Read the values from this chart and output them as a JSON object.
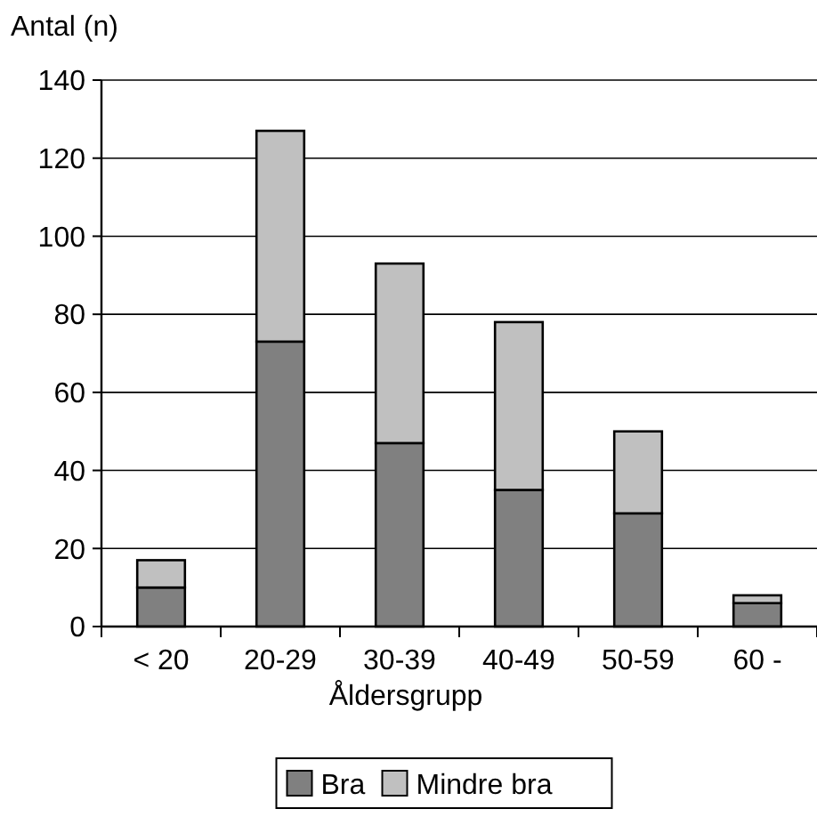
{
  "chart_data": {
    "type": "bar",
    "stacked": true,
    "ylabel": "Antal (n)",
    "xlabel": "Åldersgrupp",
    "categories": [
      "< 20",
      "20-29",
      "30-39",
      "40-49",
      "50-59",
      "60 -"
    ],
    "series": [
      {
        "name": "Bra",
        "color": "#808080",
        "values": [
          10,
          73,
          47,
          35,
          29,
          6
        ]
      },
      {
        "name": "Mindre bra",
        "color": "#c0c0c0",
        "values": [
          7,
          54,
          46,
          43,
          21,
          2
        ]
      }
    ],
    "ylim": [
      0,
      140
    ],
    "yticks": [
      0,
      20,
      40,
      60,
      80,
      100,
      120,
      140
    ],
    "grid": "y",
    "legend": "bottom"
  }
}
